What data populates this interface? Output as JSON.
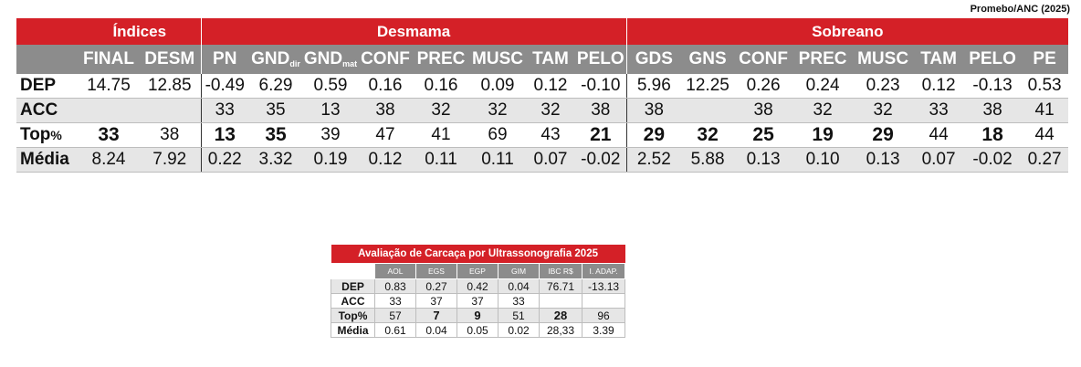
{
  "source": "Promebo/ANC (2025)",
  "main": {
    "groups": {
      "indices": "Índices",
      "desmama": "Desmama",
      "sobreano": "Sobreano"
    },
    "columns": {
      "final": "FINAL",
      "desm": "DESM",
      "pn": "PN",
      "gnd": "GND",
      "gnd_sub": "dir",
      "gnd2": "GND",
      "gnd2_sub": "mat",
      "conf_d": "CONF",
      "prec_d": "PREC",
      "musc_d": "MUSC",
      "tam_d": "TAM",
      "pelo_d": "PELO",
      "gds": "GDS",
      "gns": "GNS",
      "conf_s": "CONF",
      "prec_s": "PREC",
      "musc_s": "MUSC",
      "tam_s": "TAM",
      "pelo_s": "PELO",
      "pe": "PE"
    },
    "rows": {
      "dep": {
        "label": "DEP",
        "values": [
          "14.75",
          "12.85",
          "-0.49",
          "6.29",
          "0.59",
          "0.16",
          "0.16",
          "0.09",
          "0.12",
          "-0.10",
          "5.96",
          "12.25",
          "0.26",
          "0.24",
          "0.23",
          "0.12",
          "-0.13",
          "0.53"
        ]
      },
      "acc": {
        "label": "ACC",
        "values": [
          "",
          "",
          "33",
          "35",
          "13",
          "38",
          "32",
          "32",
          "32",
          "38",
          "38",
          "",
          "38",
          "32",
          "32",
          "33",
          "38",
          "41"
        ]
      },
      "top": {
        "label": "Top",
        "suffix": "%",
        "values": [
          "33",
          "38",
          "13",
          "35",
          "39",
          "47",
          "41",
          "69",
          "43",
          "21",
          "29",
          "32",
          "25",
          "19",
          "29",
          "44",
          "18",
          "44"
        ]
      },
      "media": {
        "label": "Média",
        "values": [
          "8.24",
          "7.92",
          "0.22",
          "3.32",
          "0.19",
          "0.12",
          "0.11",
          "0.11",
          "0.07",
          "-0.02",
          "2.52",
          "5.88",
          "0.13",
          "0.10",
          "0.13",
          "0.07",
          "-0.02",
          "0.27"
        ]
      }
    }
  },
  "carcass": {
    "title": "Avaliação de Carcaça por Ultrassonografia 2025",
    "columns": [
      "AOL",
      "EGS",
      "EGP",
      "GIM",
      "IBC R$",
      "I. ADAP."
    ],
    "rows": {
      "dep": {
        "label": "DEP",
        "values": [
          "0.83",
          "0.27",
          "0.42",
          "0.04",
          "76.71",
          "-13.13"
        ]
      },
      "acc": {
        "label": "ACC",
        "values": [
          "33",
          "37",
          "37",
          "33",
          "",
          ""
        ]
      },
      "top": {
        "label": "Top%",
        "values": [
          "57",
          "7",
          "9",
          "51",
          "28",
          "96"
        ]
      },
      "media": {
        "label": "Média",
        "values": [
          "0.61",
          "0.04",
          "0.05",
          "0.02",
          "28,33",
          "3.39"
        ]
      }
    }
  }
}
